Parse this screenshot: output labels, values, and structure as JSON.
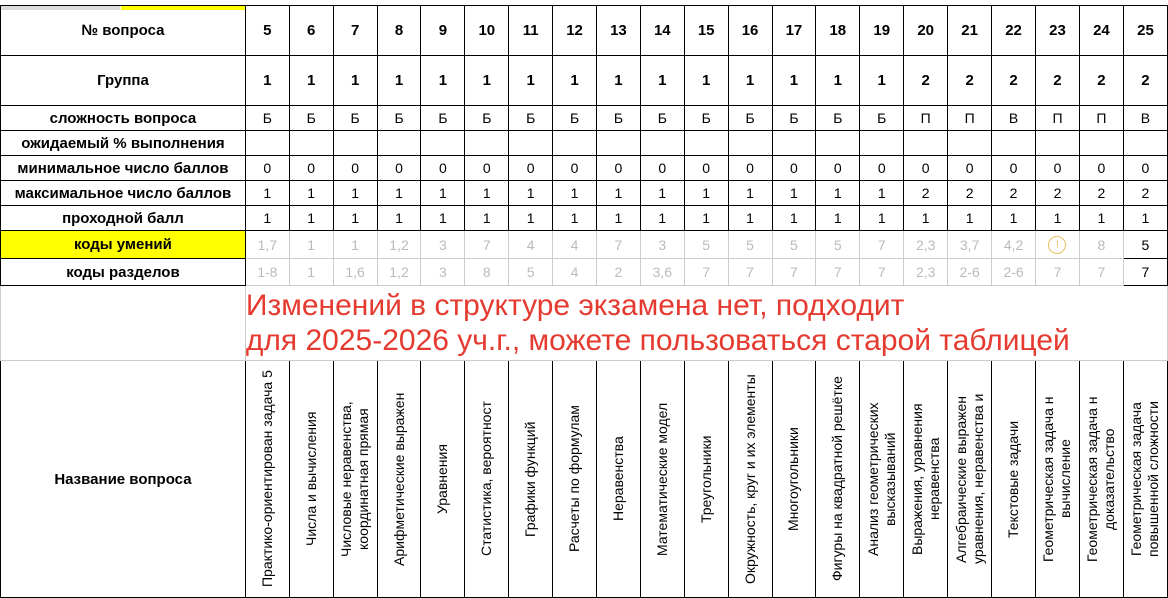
{
  "columns": [
    "5",
    "6",
    "7",
    "8",
    "9",
    "10",
    "11",
    "12",
    "13",
    "14",
    "15",
    "16",
    "17",
    "18",
    "19",
    "20",
    "21",
    "22",
    "23",
    "24",
    "25"
  ],
  "rows": {
    "number": {
      "label": "№ вопроса"
    },
    "group": {
      "label": "Группа",
      "values": [
        "1",
        "1",
        "1",
        "1",
        "1",
        "1",
        "1",
        "1",
        "1",
        "1",
        "1",
        "1",
        "1",
        "1",
        "1",
        "2",
        "2",
        "2",
        "2",
        "2",
        "2"
      ]
    },
    "difficulty": {
      "label": "сложность вопроса",
      "values": [
        "Б",
        "Б",
        "Б",
        "Б",
        "Б",
        "Б",
        "Б",
        "Б",
        "Б",
        "Б",
        "Б",
        "Б",
        "Б",
        "Б",
        "Б",
        "П",
        "П",
        "В",
        "П",
        "П",
        "В"
      ]
    },
    "expected": {
      "label": "ожидаемый % выполнения"
    },
    "min": {
      "label": "минимальное число баллов",
      "values": [
        "0",
        "0",
        "0",
        "0",
        "0",
        "0",
        "0",
        "0",
        "0",
        "0",
        "0",
        "0",
        "0",
        "0",
        "0",
        "0",
        "0",
        "0",
        "0",
        "0",
        "0"
      ]
    },
    "max": {
      "label": "максимальное число баллов",
      "values": [
        "1",
        "1",
        "1",
        "1",
        "1",
        "1",
        "1",
        "1",
        "1",
        "1",
        "1",
        "1",
        "1",
        "1",
        "1",
        "2",
        "2",
        "2",
        "2",
        "2",
        "2"
      ]
    },
    "pass": {
      "label": "проходной балл",
      "values": [
        "1",
        "1",
        "1",
        "1",
        "1",
        "1",
        "1",
        "1",
        "1",
        "1",
        "1",
        "1",
        "1",
        "1",
        "1",
        "1",
        "1",
        "1",
        "1",
        "1",
        "1"
      ]
    },
    "skills": {
      "label": "коды умений",
      "values": [
        "1,7",
        "1",
        "1",
        "1,2",
        "3",
        "7",
        "4",
        "4",
        "7",
        "3",
        "5",
        "5",
        "5",
        "5",
        "7",
        "2,3",
        "3,7",
        "4,2",
        "",
        "8",
        "5"
      ]
    },
    "sections": {
      "label": "коды разделов",
      "values": [
        "1-8",
        "1",
        "1,6",
        "1,2",
        "3",
        "8",
        "5",
        "4",
        "2",
        "3,6",
        "7",
        "7",
        "7",
        "7",
        "7",
        "2,3",
        "2-6",
        "2-6",
        "7",
        "7",
        "7"
      ]
    },
    "names": {
      "label": "Название вопроса",
      "values": [
        "Практико-ориентирован задача 5",
        "Числа и вычисления",
        "Числовые неравенства, координатная прямая",
        "Арифметические выражен",
        "Уравнения",
        "Статистика, вероятност",
        "Графики функций",
        "Расчеты по формулам",
        "Неравенства",
        "Математические модел",
        "Треугольники",
        "Окружность, круг и их элементы",
        "Многоугольники",
        "Фигуры на квадратной решётке",
        "Анализ геометрических высказываний",
        "Выражения, уравнения неравенства",
        "Алгебраические выражен уравнения, неравенства и",
        "Текстовые задачи",
        "Геометрическая задача н вычисление",
        "Геометрическая задача н доказательство",
        "Геометрическая задача повышенной сложности"
      ]
    }
  },
  "notice": {
    "line1": "Изменений в структуре экзамена нет, подходит",
    "line2": "для 2025-2026 уч.г., можете пользоваться старой таблицей"
  },
  "colors": {
    "highlight": "#ffff00",
    "notice": "#e53a2f"
  }
}
